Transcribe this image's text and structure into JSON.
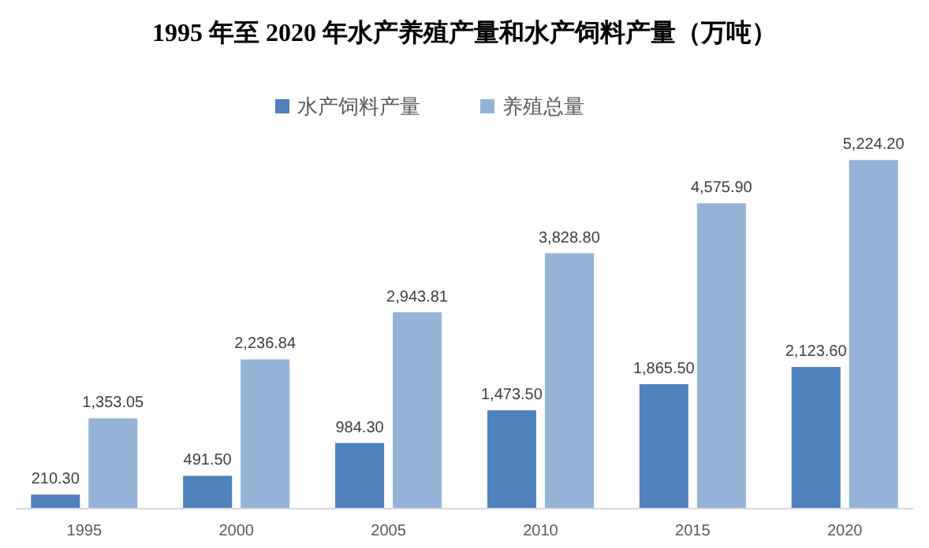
{
  "chart_data": {
    "type": "bar",
    "title": "1995 年至 2020 年水产养殖产量和水产饲料产量（万吨）",
    "categories": [
      "1995",
      "2000",
      "2005",
      "2010",
      "2015",
      "2020"
    ],
    "legend": "top",
    "series": [
      {
        "name": "水产饲料产量",
        "color": "#4f81bd",
        "values": [
          210.3,
          491.5,
          984.3,
          1473.5,
          1865.5,
          2123.6
        ],
        "value_labels": [
          "210.30",
          "491.50",
          "984.30",
          "1,473.50",
          "1,865.50",
          "2,123.60"
        ]
      },
      {
        "name": "养殖总量",
        "color": "#95b3d7",
        "values": [
          1353.05,
          2236.84,
          2943.81,
          3828.8,
          4575.9,
          5224.2
        ],
        "value_labels": [
          "1,353.05",
          "2,236.84",
          "2,943.81",
          "3,828.80",
          "4,575.90",
          "5,224.20"
        ]
      }
    ]
  }
}
